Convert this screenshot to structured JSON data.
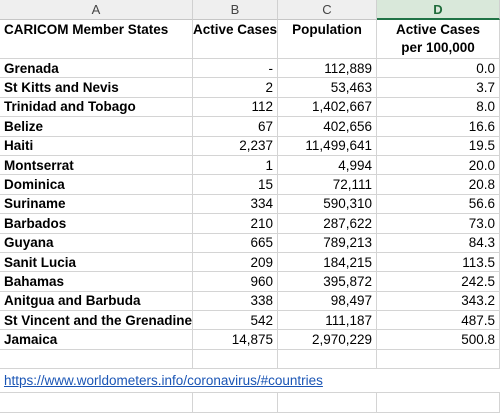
{
  "column_headers": [
    "A",
    "B",
    "C",
    "D"
  ],
  "active_column": "D",
  "table_header": {
    "member": "CARICOM Member States",
    "cases": "Active Cases",
    "population": "Population",
    "per_line1": "Active Cases",
    "per_line2": "per 100,000"
  },
  "rows": [
    {
      "name": "Grenada",
      "cases": "-",
      "population": "112,889",
      "per100k": "0.0"
    },
    {
      "name": "St Kitts and Nevis",
      "cases": "2",
      "population": "53,463",
      "per100k": "3.7"
    },
    {
      "name": "Trinidad and Tobago",
      "cases": "112",
      "population": "1,402,667",
      "per100k": "8.0"
    },
    {
      "name": "Belize",
      "cases": "67",
      "population": "402,656",
      "per100k": "16.6"
    },
    {
      "name": "Haiti",
      "cases": "2,237",
      "population": "11,499,641",
      "per100k": "19.5"
    },
    {
      "name": "Montserrat",
      "cases": "1",
      "population": "4,994",
      "per100k": "20.0"
    },
    {
      "name": "Dominica",
      "cases": "15",
      "population": "72,111",
      "per100k": "20.8"
    },
    {
      "name": "Suriname",
      "cases": "334",
      "population": "590,310",
      "per100k": "56.6"
    },
    {
      "name": "Barbados",
      "cases": "210",
      "population": "287,622",
      "per100k": "73.0"
    },
    {
      "name": "Guyana",
      "cases": "665",
      "population": "789,213",
      "per100k": "84.3"
    },
    {
      "name": "Sanit Lucia",
      "cases": "209",
      "population": "184,215",
      "per100k": "113.5"
    },
    {
      "name": "Bahamas",
      "cases": "960",
      "population": "395,872",
      "per100k": "242.5"
    },
    {
      "name": "Anitgua and Barbuda",
      "cases": "338",
      "population": "98,497",
      "per100k": "343.2"
    },
    {
      "name": "St Vincent and the Grenadines",
      "cases": "542",
      "population": "111,187",
      "per100k": "487.5"
    },
    {
      "name": "Jamaica",
      "cases": "14,875",
      "population": "2,970,229",
      "per100k": "500.8"
    }
  ],
  "source_link": "https://www.worldometers.info/coronavirus/#countries"
}
